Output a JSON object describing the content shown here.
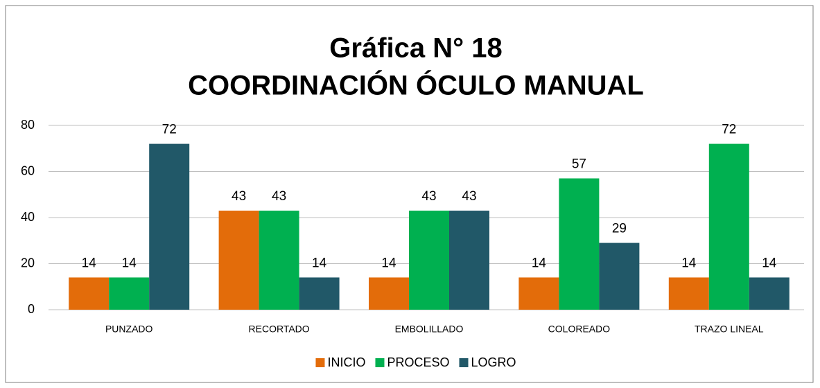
{
  "chart_data": {
    "type": "bar",
    "title": "Gráfica N° 18",
    "subtitle": "COORDINACIÓN  ÓCULO MANUAL",
    "categories": [
      "PUNZADO",
      "RECORTADO",
      "EMBOLILLADO",
      "COLOREADO",
      "TRAZO LINEAL"
    ],
    "series": [
      {
        "name": "INICIO",
        "color": "#e36c0a",
        "values": [
          14,
          43,
          14,
          14,
          14
        ]
      },
      {
        "name": "PROCESO",
        "color": "#00b050",
        "values": [
          14,
          43,
          43,
          57,
          72
        ]
      },
      {
        "name": "LOGRO",
        "color": "#215868",
        "values": [
          72,
          14,
          43,
          29,
          14
        ]
      }
    ],
    "ylim": [
      0,
      80
    ],
    "yticks": [
      0,
      20,
      40,
      60,
      80
    ],
    "grid": true,
    "legend": "bottom"
  }
}
